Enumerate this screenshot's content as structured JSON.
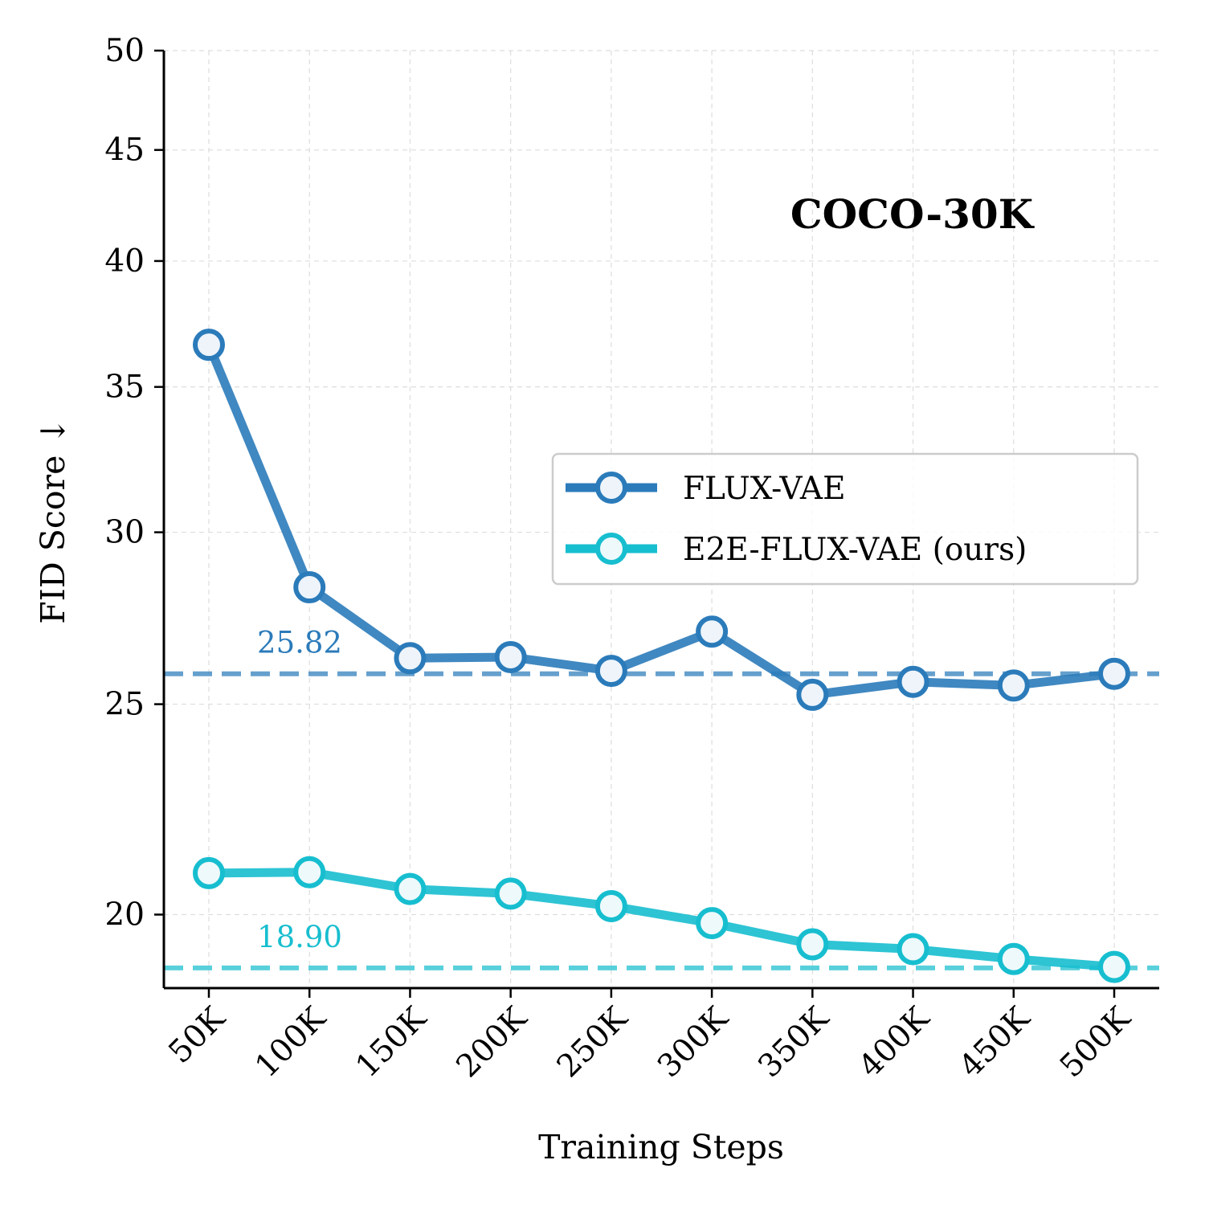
{
  "chart_data": {
    "type": "line",
    "title": "COCO-30K",
    "xlabel": "Training Steps",
    "ylabel": "FID Score ↓",
    "categories": [
      "50K",
      "100K",
      "150K",
      "200K",
      "250K",
      "300K",
      "350K",
      "400K",
      "450K",
      "500K"
    ],
    "y_scale": "log",
    "ylim": [
      18.5,
      50
    ],
    "yticks": [
      20,
      25,
      30,
      35,
      40,
      45,
      50
    ],
    "grid": true,
    "legend_position": "center-right",
    "series": [
      {
        "name": "FLUX-VAE",
        "values": [
          36.6,
          28.3,
          26.25,
          26.28,
          25.9,
          27.0,
          25.25,
          25.6,
          25.5,
          25.82
        ],
        "color": "#2b7bba",
        "reference_line": 25.82,
        "reference_label": "25.82"
      },
      {
        "name": "E2E-FLUX-VAE (ours)",
        "values": [
          20.9,
          20.92,
          20.55,
          20.45,
          20.18,
          19.82,
          19.38,
          19.28,
          19.08,
          18.92
        ],
        "color": "#17becf",
        "reference_line": 18.9,
        "reference_label": "18.90"
      }
    ]
  }
}
